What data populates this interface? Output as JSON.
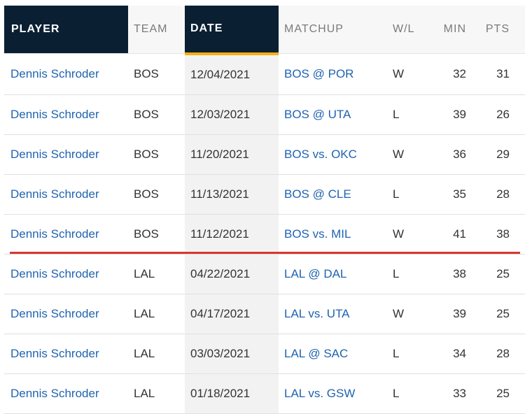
{
  "headers": {
    "player": "PLAYER",
    "team": "TEAM",
    "date": "DATE",
    "matchup": "MATCHUP",
    "wl": "W/L",
    "min": "MIN",
    "pts": "PTS"
  },
  "rows": [
    {
      "player": "Dennis Schroder",
      "team": "BOS",
      "date": "12/04/2021",
      "matchup": "BOS @ POR",
      "wl": "W",
      "min": "32",
      "pts": "31"
    },
    {
      "player": "Dennis Schroder",
      "team": "BOS",
      "date": "12/03/2021",
      "matchup": "BOS @ UTA",
      "wl": "L",
      "min": "39",
      "pts": "26"
    },
    {
      "player": "Dennis Schroder",
      "team": "BOS",
      "date": "11/20/2021",
      "matchup": "BOS vs. OKC",
      "wl": "W",
      "min": "36",
      "pts": "29"
    },
    {
      "player": "Dennis Schroder",
      "team": "BOS",
      "date": "11/13/2021",
      "matchup": "BOS @ CLE",
      "wl": "L",
      "min": "35",
      "pts": "28"
    },
    {
      "player": "Dennis Schroder",
      "team": "BOS",
      "date": "11/12/2021",
      "matchup": "BOS vs. MIL",
      "wl": "W",
      "min": "41",
      "pts": "38"
    },
    {
      "player": "Dennis Schroder",
      "team": "LAL",
      "date": "04/22/2021",
      "matchup": "LAL @ DAL",
      "wl": "L",
      "min": "38",
      "pts": "25"
    },
    {
      "player": "Dennis Schroder",
      "team": "LAL",
      "date": "04/17/2021",
      "matchup": "LAL vs. UTA",
      "wl": "W",
      "min": "39",
      "pts": "25"
    },
    {
      "player": "Dennis Schroder",
      "team": "LAL",
      "date": "03/03/2021",
      "matchup": "LAL @ SAC",
      "wl": "L",
      "min": "34",
      "pts": "28"
    },
    {
      "player": "Dennis Schroder",
      "team": "LAL",
      "date": "01/18/2021",
      "matchup": "LAL vs. GSW",
      "wl": "L",
      "min": "33",
      "pts": "25"
    }
  ],
  "colors": {
    "header_dark": "#0b1f33",
    "sort_accent": "#f5b10f",
    "link": "#1f63b0",
    "divider": "#d9362f"
  }
}
